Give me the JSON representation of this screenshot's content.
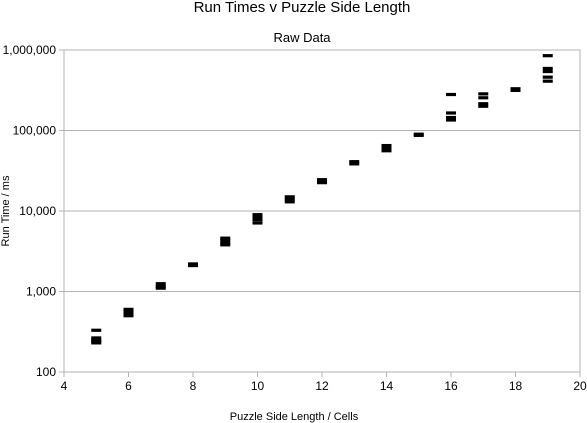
{
  "chart_data": {
    "type": "scatter",
    "title": "Run Times v Puzzle Side Length",
    "subtitle": "Raw Data",
    "xlabel": "Puzzle Side Length / Cells",
    "ylabel": "Run Time / ms",
    "xlim": [
      4,
      20
    ],
    "ylim": [
      100,
      1000000
    ],
    "y_scale": "log",
    "grid": "horizontal",
    "legend": "none",
    "x_ticks": [
      "4",
      "6",
      "8",
      "10",
      "12",
      "14",
      "16",
      "18",
      "20"
    ],
    "y_ticks": [
      "100",
      "1,000",
      "10,000",
      "100,000",
      "1,000,000"
    ],
    "marker_color": "#000000",
    "series": [
      {
        "x": [
          5,
          5,
          5,
          5,
          5,
          6,
          6,
          6,
          6,
          7,
          7,
          7,
          8,
          8,
          9,
          9,
          9,
          9,
          10,
          10,
          10,
          10,
          11,
          11,
          11,
          12,
          12,
          13,
          13,
          14,
          14,
          14,
          15,
          15,
          16,
          16,
          16,
          16,
          17,
          17,
          17,
          17,
          18,
          18,
          19,
          19,
          19,
          19,
          19
        ],
        "y": [
          330,
          265,
          250,
          240,
          230,
          600,
          560,
          520,
          500,
          1250,
          1150,
          1100,
          2200,
          2100,
          4600,
          4300,
          4000,
          3800,
          9000,
          8400,
          7800,
          7100,
          15000,
          14000,
          13000,
          24500,
          22500,
          41000,
          38500,
          65000,
          60000,
          56000,
          90000,
          87000,
          280000,
          165000,
          145000,
          135000,
          285000,
          255000,
          215000,
          200000,
          330000,
          315000,
          850000,
          590000,
          540000,
          460000,
          410000
        ]
      }
    ]
  }
}
